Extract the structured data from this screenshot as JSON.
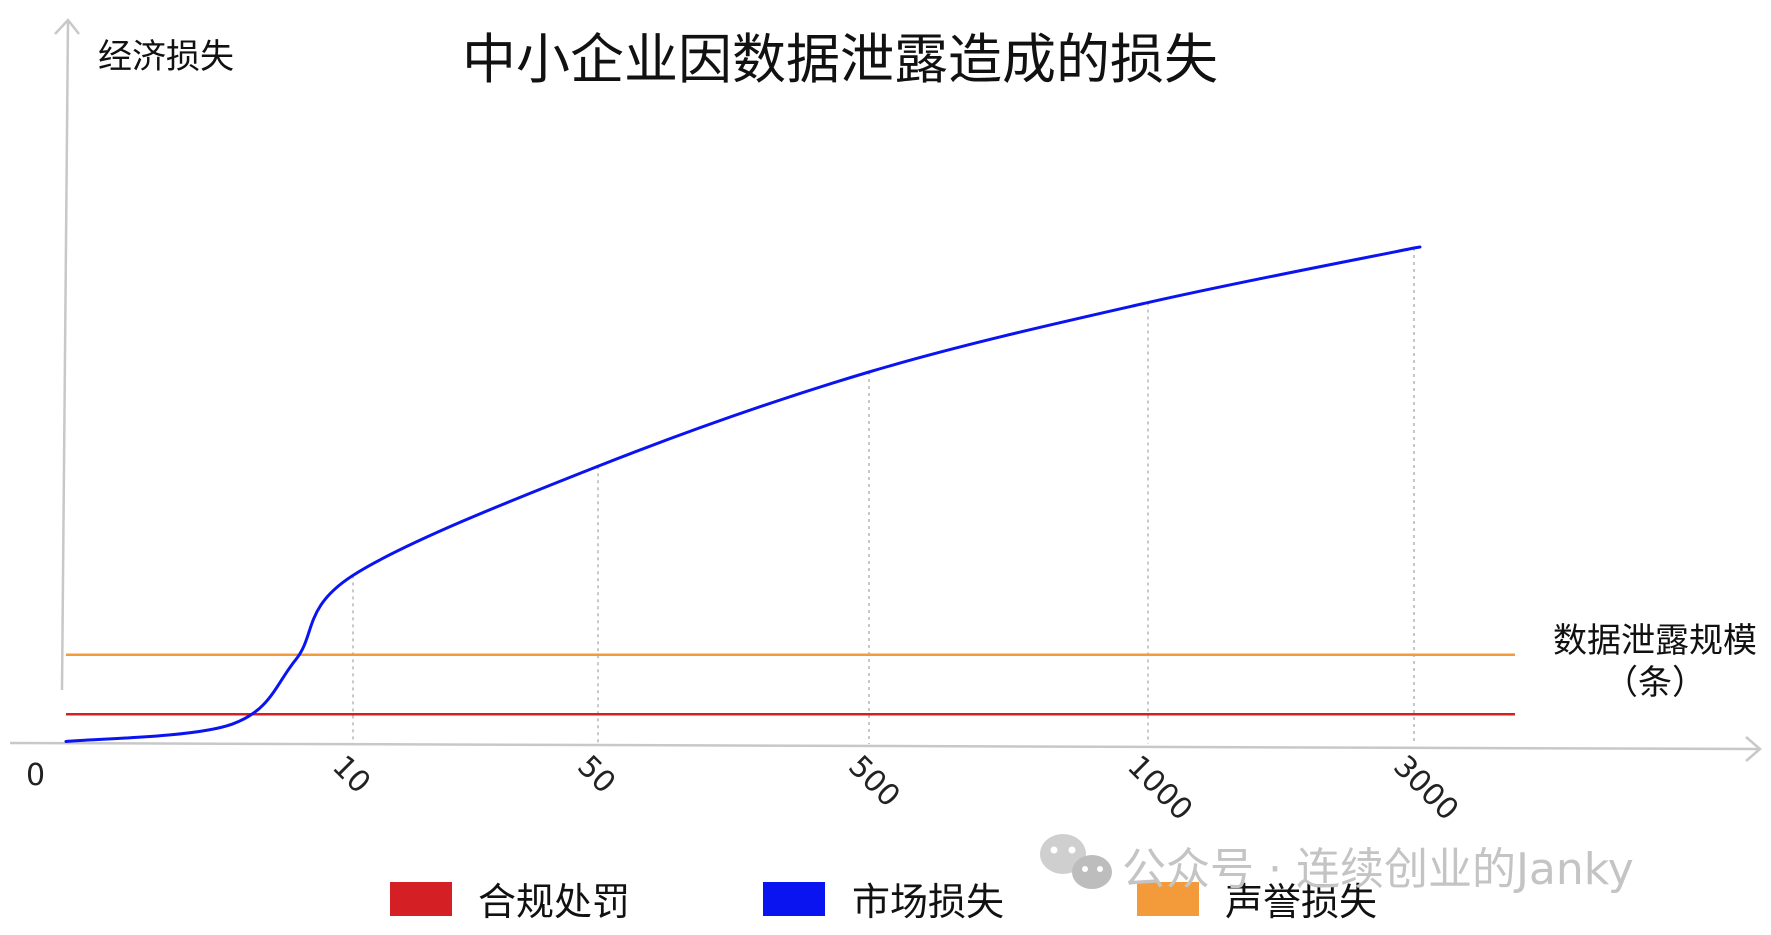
{
  "chart_data": {
    "type": "line",
    "title": "中小企业因数据泄露造成的损失",
    "ylabel": "经济损失",
    "xlabel_line1": "数据泄露规模",
    "xlabel_line2": "（条）",
    "origin_label": "0",
    "x_scale": "log",
    "x_ticks": [
      "10",
      "50",
      "500",
      "1000",
      "3000"
    ],
    "grid": "vertical dotted lines at x ticks",
    "legend_position": "bottom",
    "series": [
      {
        "name": "市场损失",
        "color": "#0a14f0",
        "style": "curve",
        "points": [
          {
            "x": 0,
            "y": 0.005
          },
          {
            "x": 1.4,
            "y": 0.04
          },
          {
            "x": 4,
            "y": 0.17
          },
          {
            "x": 10,
            "y": 0.34
          },
          {
            "x": 50,
            "y": 0.56
          },
          {
            "x": 500,
            "y": 0.75
          },
          {
            "x": 1000,
            "y": 0.89
          },
          {
            "x": 3000,
            "y": 1.0
          }
        ]
      },
      {
        "name": "声誉损失",
        "color": "#f39b3a",
        "style": "constant",
        "value": 0.18
      },
      {
        "name": "合规处罚",
        "color": "#d42025",
        "style": "constant",
        "value": 0.06
      }
    ],
    "legend": [
      {
        "label": "合规处罚",
        "color": "#d42025"
      },
      {
        "label": "市场损失",
        "color": "#0a14f0"
      },
      {
        "label": "声誉损失",
        "color": "#f39b3a"
      }
    ]
  },
  "watermark": {
    "text": "公众号 · 连续创业的Janky",
    "icon": "wechat-icon"
  }
}
